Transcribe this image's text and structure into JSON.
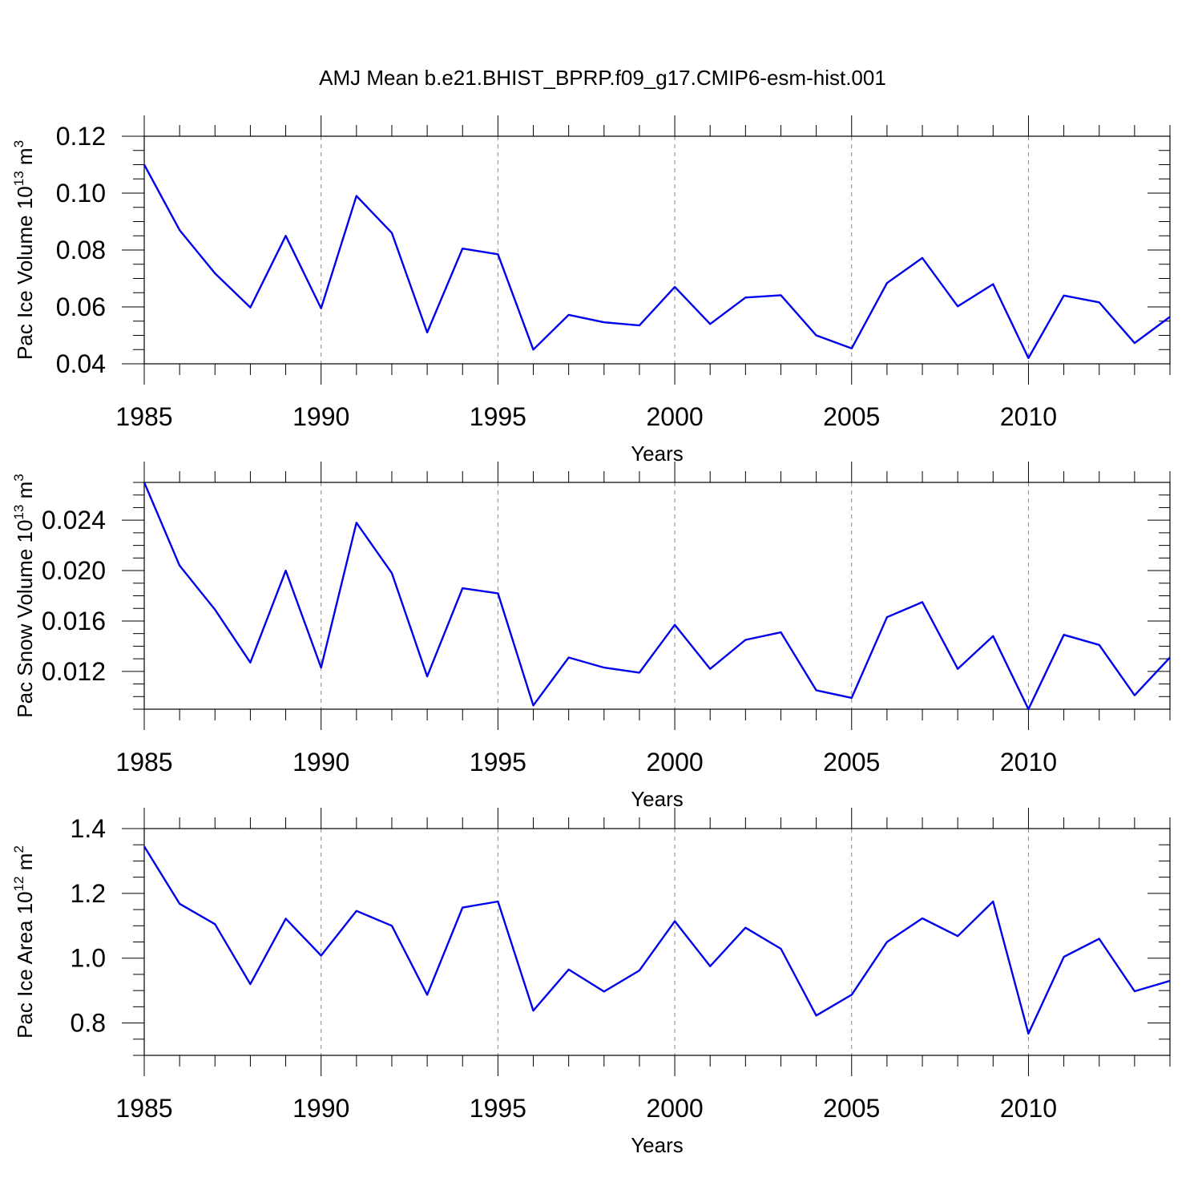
{
  "colors": {
    "series": "#0000ee",
    "grid": "#8a8a8a",
    "axis": "#000000",
    "background": "#ffffff"
  },
  "chart_data": {
    "title": "AMJ Mean b.e21.BHIST_BPRP.f09_g17.CMIP6-esm-hist.001",
    "type": "line",
    "panels": [
      {
        "id": "ice-volume",
        "ylabel": "Pac Ice Volume 10",
        "ylabel_exp": "13",
        "ylabel_unit": " m",
        "ylabel_unit_exp": "3",
        "xlabel": "Years",
        "xlim": [
          1985,
          2014
        ],
        "ylim": [
          0.04,
          0.12
        ],
        "yticks": [
          0.04,
          0.06,
          0.08,
          0.1,
          0.12
        ],
        "ytick_labels": [
          "0.04",
          "0.06",
          "0.08",
          "0.10",
          "0.12"
        ],
        "yminor_step": 0.005,
        "xticks": [
          1985,
          1990,
          1995,
          2000,
          2005,
          2010
        ],
        "xtick_labels": [
          "1985",
          "1990",
          "1995",
          "2000",
          "2005",
          "2010"
        ],
        "x": [
          1985,
          1986,
          1987,
          1988,
          1989,
          1990,
          1991,
          1992,
          1993,
          1994,
          1995,
          1996,
          1997,
          1998,
          1999,
          2000,
          2001,
          2002,
          2003,
          2004,
          2005,
          2006,
          2007,
          2008,
          2009,
          2010,
          2011,
          2012,
          2013,
          2014
        ],
        "values": [
          0.11,
          0.087,
          0.0718,
          0.0598,
          0.085,
          0.0595,
          0.099,
          0.086,
          0.051,
          0.0805,
          0.0785,
          0.045,
          0.0572,
          0.0546,
          0.0535,
          0.067,
          0.054,
          0.0633,
          0.0641,
          0.05,
          0.0454,
          0.0684,
          0.0772,
          0.0602,
          0.068,
          0.042,
          0.064,
          0.0616,
          0.0473,
          0.0565
        ]
      },
      {
        "id": "snow-volume",
        "ylabel": "Pac Snow Volume 10",
        "ylabel_exp": "13",
        "ylabel_unit": " m",
        "ylabel_unit_exp": "3",
        "xlabel": "Years",
        "xlim": [
          1985,
          2014
        ],
        "ylim": [
          0.009,
          0.027
        ],
        "yticks": [
          0.012,
          0.016,
          0.02,
          0.024
        ],
        "ytick_labels": [
          "0.012",
          "0.016",
          "0.020",
          "0.024"
        ],
        "yminor_step": 0.001,
        "xticks": [
          1985,
          1990,
          1995,
          2000,
          2005,
          2010
        ],
        "xtick_labels": [
          "1985",
          "1990",
          "1995",
          "2000",
          "2005",
          "2010"
        ],
        "x": [
          1985,
          1986,
          1987,
          1988,
          1989,
          1990,
          1991,
          1992,
          1993,
          1994,
          1995,
          1996,
          1997,
          1998,
          1999,
          2000,
          2001,
          2002,
          2003,
          2004,
          2005,
          2006,
          2007,
          2008,
          2009,
          2010,
          2011,
          2012,
          2013,
          2014
        ],
        "values": [
          0.027,
          0.0204,
          0.0169,
          0.0127,
          0.02,
          0.0123,
          0.0238,
          0.0198,
          0.0116,
          0.0186,
          0.0182,
          0.0093,
          0.0131,
          0.0123,
          0.0119,
          0.0157,
          0.0122,
          0.0145,
          0.0151,
          0.0105,
          0.0099,
          0.0163,
          0.0175,
          0.0122,
          0.0148,
          0.009,
          0.0149,
          0.0141,
          0.0101,
          0.0131
        ]
      },
      {
        "id": "ice-area",
        "ylabel": "Pac Ice Area 10",
        "ylabel_exp": "12",
        "ylabel_unit": " m",
        "ylabel_unit_exp": "2",
        "xlabel": "Years",
        "xlim": [
          1985,
          2014
        ],
        "ylim": [
          0.7,
          1.4
        ],
        "yticks": [
          0.8,
          1.0,
          1.2,
          1.4
        ],
        "ytick_labels": [
          "0.8",
          "1.0",
          "1.2",
          "1.4"
        ],
        "yminor_step": 0.05,
        "xticks": [
          1985,
          1990,
          1995,
          2000,
          2005,
          2010
        ],
        "xtick_labels": [
          "1985",
          "1990",
          "1995",
          "2000",
          "2005",
          "2010"
        ],
        "x": [
          1985,
          1986,
          1987,
          1988,
          1989,
          1990,
          1991,
          1992,
          1993,
          1994,
          1995,
          1996,
          1997,
          1998,
          1999,
          2000,
          2001,
          2002,
          2003,
          2004,
          2005,
          2006,
          2007,
          2008,
          2009,
          2010,
          2011,
          2012,
          2013,
          2014
        ],
        "values": [
          1.345,
          1.168,
          1.105,
          0.92,
          1.122,
          1.008,
          1.146,
          1.1,
          0.887,
          1.156,
          1.175,
          0.838,
          0.965,
          0.897,
          0.962,
          1.114,
          0.975,
          1.094,
          1.029,
          0.823,
          0.887,
          1.05,
          1.123,
          1.068,
          1.175,
          0.767,
          1.004,
          1.06,
          0.898,
          0.93
        ]
      }
    ]
  }
}
